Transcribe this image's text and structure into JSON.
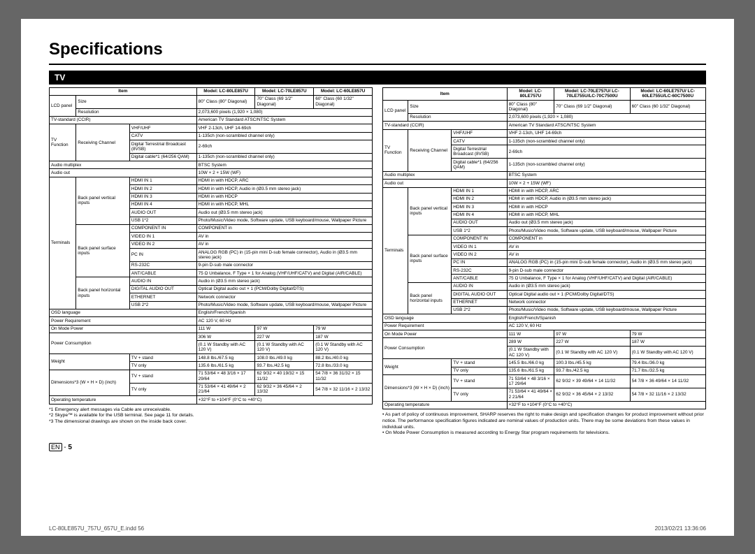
{
  "title": "Speciﬁcations",
  "section_label": "TV",
  "page_num": "5",
  "bottom_left": "LC-80LE857U_757U_657U_E.indd   56",
  "bottom_right": "2013/02/21   13:36:06",
  "t1": {
    "h0": "Item",
    "h1": "Model: LC-80LE857U",
    "h2": "Model: LC-70LE857U",
    "h3": "Model: LC-60LE857U",
    "lcd_panel": "LCD panel",
    "size": "Size",
    "size_80": "80\" Class (80\" Diagonal)",
    "size_70": "70\" Class (69 1/2\" Diagonal)",
    "size_60": "60\" Class (60 1/32\" Diagonal)",
    "resolution": "Resolution",
    "resolution_v": "2,073,600 pixels (1,920 × 1,080)",
    "tvstd": "TV-standard (CCIR)",
    "tvstd_v": "American TV Standard ATSC/NTSC System",
    "tvfunc": "TV Function",
    "recv": "Receiving Channel",
    "vhf": "VHF/UHF",
    "vhf_v": "VHF 2-13ch, UHF 14-69ch",
    "catv": "CATV",
    "catv_v": "1-135ch (non-scrambled channel only)",
    "dtb": "Digital Terrestrial Broadcast (8VSB)",
    "dtb_v": "2-69ch",
    "dcab": "Digital cable*1 (64/256 QAM)",
    "dcab_v": "1-135ch (non-scrambled channel only)",
    "amux": "Audio multiplex",
    "amux_v": "BTSC System",
    "aout": "Audio out",
    "aout_v": "10W × 2 + 15W (WF)",
    "terminals": "Terminals",
    "bpv": "Back panel vertical inputs",
    "hdmi1": "HDMI IN 1",
    "hdmi1_v": "HDMI in with HDCP, ARC",
    "hdmi2": "HDMI IN 2",
    "hdmi2_v": "HDMI in with HDCP, Audio in (Ø3.5 mm stereo jack)",
    "hdmi3": "HDMI IN 3",
    "hdmi3_v": "HDMI in with HDCP",
    "hdmi4": "HDMI IN 4",
    "hdmi4_v": "HDMI in with HDCP, MHL",
    "audout": "AUDIO OUT",
    "audout_v": "Audio out (Ø3.5 mm stereo jack)",
    "usb1": "USB 1*2",
    "usb1_v": "Photo/Music/Video mode, Software update, USB keyboard/mouse, Wallpaper Picture",
    "bps": "Back panel surface inputs",
    "comp": "COMPONENT IN",
    "comp_v": "COMPONENT in",
    "vid1": "VIDEO IN 1",
    "vid1_v": "AV in",
    "vid2": "VIDEO IN 2",
    "vid2_v": "AV in",
    "pcin": "PC IN",
    "pcin_v": "ANALOG RGB (PC) in (15-pin mini D-sub female connector), Audio in (Ø3.5 mm stereo jack)",
    "rs": "RS-232C",
    "rs_v": "9-pin D-sub male connector",
    "ant": "ANT/CABLE",
    "ant_v": "75 Ω Unbalance, F Type × 1 for Analog (VHF/UHF/CATV) and Digital (AIR/CABLE)",
    "bph": "Back panel horizontal inputs",
    "aio": "AUDIO IN",
    "aio_v": "Audio in (Ø3.5 mm stereo jack)",
    "dao": "DIGITAL AUDIO OUT",
    "dao_v": "Optical Digital audio out × 1 (PCM/Dolby Digital/DTS)",
    "eth": "ETHERNET",
    "eth_v": "Network connector",
    "usb2": "USB 2*2",
    "usb2_v": "Photo/Music/Video mode, Software update, USB keyboard/mouse, Wallpaper Picture",
    "osd": "OSD language",
    "osd_v": "English/French/Spanish",
    "preq": "Power Requirement",
    "preq_v": "AC 120 V, 60 Hz",
    "onp": "On Mode Power",
    "onp_80": "111 W",
    "onp_70": "97 W",
    "onp_60": "79 W",
    "pcons": "Power Consumption",
    "pcons_80": "306 W",
    "pcons_70": "227 W",
    "pcons_60": "187 W",
    "pcons_sb": "(0.1 W Standby with AC 120 V)",
    "weight": "Weight",
    "wstand": "TV + stand",
    "w_80s": "148.8 lbs./67.5 kg",
    "w_70s": "108.0 lbs./49.0 kg",
    "w_60s": "88.2 lbs./40.0 kg",
    "wonly": "TV only",
    "w_80o": "135.6 lbs./61.5 kg",
    "w_70o": "93.7 lbs./42.5 kg",
    "w_60o": "72.8 lbs./33.0 kg",
    "dims": "Dimensions*3 (W × H × D) (inch)",
    "dstand": "TV + stand",
    "d_80s": "71 53/64 × 48 3/16 × 17 29/64",
    "d_70s": "62 9/32 × 40 19/32 × 15 11/32",
    "d_60s": "54 7/8 × 36 31/32 × 15 11/32",
    "donly": "TV only",
    "d_80o": "71 53/64 × 41 49/64 × 2 21/64",
    "d_70o": "62 9/32 × 36 45/64 × 2 13/32",
    "d_60o": "54 7/8 × 32 11/16 × 2 13/32",
    "optemp": "Operating temperature",
    "optemp_v": "+32°F to  +104°F (0°C to    +40°C)"
  },
  "t2": {
    "h0": "Item",
    "h1": "Model: LC-80LE757U",
    "h2": "Model: LC-70LE757U/ LC-70LE755U/LC-70C7500U",
    "h3": "Model: LC-60LE757U/ LC-60LE755U/LC-60C7500U",
    "size_80": "80\" Class (80\" Diagonal)",
    "size_70": "70\" Class (69 1/2\" Diagonal)",
    "size_60": "60\" Class (60 1/32\" Diagonal)",
    "onp_80": "111 W",
    "onp_70": "97 W",
    "onp_60": "79 W",
    "pcons_80": "289 W",
    "pcons_70": "227 W",
    "pcons_60": "187 W",
    "w_80s": "145.5 lbs./66.0 kg",
    "w_70s": "100.3 lbs./45.5 kg",
    "w_60s": "79.4 lbs./36.0 kg",
    "w_80o": "135.6 lbs./61.5 kg",
    "w_70o": "93.7 lbs./42.5 kg",
    "w_60o": "71.7 lbs./32.5 kg",
    "d_80s": "71 53/64 × 48 3/16 × 17 29/64",
    "d_70s": "62 9/32 × 39 49/64 × 14 11/32",
    "d_60s": "54 7/8 × 36 49/64 × 14 11/32",
    "d_80o": "71 53/64 × 41 49/64 × 2 21/64",
    "d_70o": "62 9/32 × 36 45/64 × 2 13/32",
    "d_60o": "54 7/8 × 32 11/16 × 2 13/32"
  },
  "notes_left": [
    "*1 Emergency alert messages via Cable are unreceivable.",
    "*2 Skype™ is available for the USB terminal. See page 11 for details.",
    "*3 The dimensional drawings are shown on the inside back cover."
  ],
  "notes_right": [
    "• As part of policy of continuous improvement, SHARP reserves the right to make design and specification changes for product improvement without prior notice. The performance specification figures indicated are nominal values of production units. There may be some deviations from these values in individual units.",
    "• On Mode Power Consumption is measured according to Energy Star program requirements for televisions."
  ]
}
